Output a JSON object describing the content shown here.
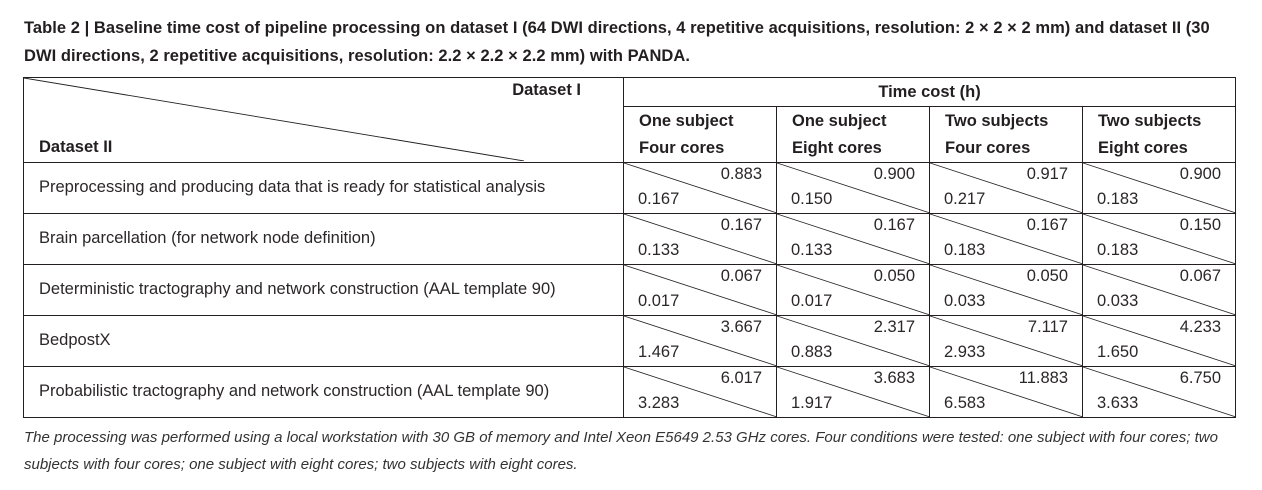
{
  "caption": "Table 2 | Baseline time cost of pipeline processing on dataset I (64 DWI directions, 4 repetitive acquisitions, resolution: 2 × 2 × 2 mm) and dataset II (30 DWI directions, 2 repetitive acquisitions, resolution: 2.2 × 2.2 × 2.2 mm) with PANDA.",
  "table": {
    "corner_top": "Dataset I",
    "corner_bottom": "Dataset II",
    "group_header": "Time cost (h)",
    "columns": [
      {
        "line1": "One subject",
        "line2": "Four cores"
      },
      {
        "line1": "One subject",
        "line2": "Eight cores"
      },
      {
        "line1": "Two subjects",
        "line2": "Four cores"
      },
      {
        "line1": "Two subjects",
        "line2": "Eight cores"
      }
    ],
    "rows": [
      {
        "label": "Preprocessing and producing data that is ready for statistical analysis",
        "cells": [
          {
            "dataset1": "0.883",
            "dataset2": "0.167"
          },
          {
            "dataset1": "0.900",
            "dataset2": "0.150"
          },
          {
            "dataset1": "0.917",
            "dataset2": "0.217"
          },
          {
            "dataset1": "0.900",
            "dataset2": "0.183"
          }
        ]
      },
      {
        "label": "Brain parcellation (for network node definition)",
        "cells": [
          {
            "dataset1": "0.167",
            "dataset2": "0.133"
          },
          {
            "dataset1": "0.167",
            "dataset2": "0.133"
          },
          {
            "dataset1": "0.167",
            "dataset2": "0.183"
          },
          {
            "dataset1": "0.150",
            "dataset2": "0.183"
          }
        ]
      },
      {
        "label": "Deterministic tractography and network construction (AAL template 90)",
        "cells": [
          {
            "dataset1": "0.067",
            "dataset2": "0.017"
          },
          {
            "dataset1": "0.050",
            "dataset2": "0.017"
          },
          {
            "dataset1": "0.050",
            "dataset2": "0.033"
          },
          {
            "dataset1": "0.067",
            "dataset2": "0.033"
          }
        ]
      },
      {
        "label": "BedpostX",
        "cells": [
          {
            "dataset1": "3.667",
            "dataset2": "1.467"
          },
          {
            "dataset1": "2.317",
            "dataset2": "0.883"
          },
          {
            "dataset1": "7.117",
            "dataset2": "2.933"
          },
          {
            "dataset1": "4.233",
            "dataset2": "1.650"
          }
        ]
      },
      {
        "label": "Probabilistic tractography and network construction (AAL template 90)",
        "cells": [
          {
            "dataset1": "6.017",
            "dataset2": "3.283"
          },
          {
            "dataset1": "3.683",
            "dataset2": "1.917"
          },
          {
            "dataset1": "11.883",
            "dataset2": "6.583"
          },
          {
            "dataset1": "6.750",
            "dataset2": "3.633"
          }
        ]
      }
    ]
  },
  "footnote": "The processing was performed using a local workstation with 30 GB of memory and Intel Xeon E5649 2.53 GHz cores. Four conditions were tested: one subject with four cores; two subjects with four cores; one subject with eight cores; two subjects with eight cores."
}
